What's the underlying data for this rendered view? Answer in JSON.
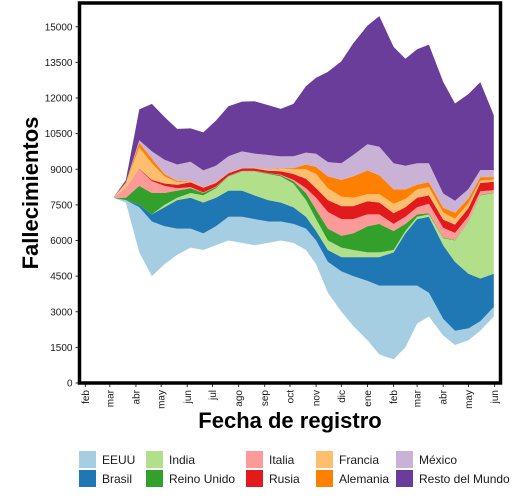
{
  "chart_data": {
    "type": "area",
    "subtype": "stacked-streamgraph",
    "title": "",
    "xlabel": "Fecha de registro",
    "ylabel": "Fallecimientos",
    "ylim": [
      0,
      16000
    ],
    "yticks": [
      0,
      1500,
      3000,
      4500,
      6000,
      7500,
      9000,
      10500,
      12000,
      13500,
      15000
    ],
    "xlim": [
      "2020-01-25",
      "2021-06-08"
    ],
    "xticks": [
      {
        "date": "2020-02-01",
        "label": "feb"
      },
      {
        "date": "2020-03-01",
        "label": "mar"
      },
      {
        "date": "2020-04-01",
        "label": "abr"
      },
      {
        "date": "2020-05-01",
        "label": "may"
      },
      {
        "date": "2020-06-01",
        "label": "jun"
      },
      {
        "date": "2020-07-01",
        "label": "jul"
      },
      {
        "date": "2020-08-01",
        "label": "ago"
      },
      {
        "date": "2020-09-01",
        "label": "sep"
      },
      {
        "date": "2020-10-01",
        "label": "oct"
      },
      {
        "date": "2020-11-01",
        "label": "nov"
      },
      {
        "date": "2020-12-01",
        "label": "dic"
      },
      {
        "date": "2021-01-01",
        "label": "ene"
      },
      {
        "date": "2021-02-01",
        "label": "feb"
      },
      {
        "date": "2021-03-01",
        "label": "mar"
      },
      {
        "date": "2021-04-01",
        "label": "abr"
      },
      {
        "date": "2021-05-01",
        "label": "may"
      },
      {
        "date": "2021-06-01",
        "label": "jun"
      }
    ],
    "grid": false,
    "legend_position": "bottom",
    "x": [
      "2020-03-05",
      "2020-03-20",
      "2020-04-05",
      "2020-04-20",
      "2020-05-05",
      "2020-05-20",
      "2020-06-05",
      "2020-06-20",
      "2020-07-05",
      "2020-07-20",
      "2020-08-05",
      "2020-08-20",
      "2020-09-05",
      "2020-09-20",
      "2020-10-05",
      "2020-10-20",
      "2020-11-01",
      "2020-11-15",
      "2020-12-01",
      "2020-12-15",
      "2021-01-01",
      "2021-01-15",
      "2021-02-01",
      "2021-02-15",
      "2021-03-01",
      "2021-03-15",
      "2021-04-01",
      "2021-04-15",
      "2021-05-01",
      "2021-05-15",
      "2021-05-31"
    ],
    "baseline": [
      7800,
      7600,
      5500,
      4500,
      5000,
      5400,
      5700,
      5600,
      5800,
      6000,
      5900,
      5800,
      5900,
      6000,
      5900,
      5600,
      5000,
      3800,
      3000,
      2400,
      1800,
      1200,
      1000,
      1500,
      2500,
      2800,
      2000,
      1600,
      1800,
      2200,
      2800
    ],
    "series": [
      {
        "name": "EEUU",
        "color": "#a6cee3",
        "values": [
          0,
          100,
          1900,
          2300,
          1600,
          1100,
          800,
          700,
          800,
          1000,
          1100,
          1100,
          900,
          800,
          800,
          900,
          1000,
          1300,
          1700,
          2100,
          2500,
          2900,
          3100,
          2600,
          1600,
          1000,
          700,
          600,
          500,
          400,
          400
        ]
      },
      {
        "name": "Brasil",
        "color": "#1f78b4",
        "values": [
          0,
          0,
          100,
          300,
          800,
          1200,
          1300,
          1300,
          1200,
          1100,
          1100,
          1000,
          900,
          800,
          700,
          500,
          400,
          500,
          600,
          800,
          1000,
          1200,
          1400,
          2200,
          2800,
          3200,
          3100,
          2900,
          2300,
          1800,
          1400
        ]
      },
      {
        "name": "India",
        "color": "#b2df8a",
        "values": [
          0,
          0,
          0,
          0,
          100,
          100,
          200,
          300,
          400,
          600,
          800,
          1000,
          1100,
          1100,
          1000,
          700,
          500,
          400,
          400,
          300,
          200,
          200,
          100,
          100,
          100,
          100,
          300,
          900,
          2200,
          3500,
          3400
        ]
      },
      {
        "name": "Reino Unido",
        "color": "#33a02c",
        "values": [
          0,
          100,
          800,
          900,
          500,
          300,
          200,
          100,
          50,
          20,
          20,
          20,
          30,
          50,
          100,
          300,
          400,
          500,
          500,
          700,
          1100,
          1200,
          800,
          300,
          100,
          50,
          30,
          20,
          20,
          20,
          20
        ]
      },
      {
        "name": "Italia",
        "color": "#fb9a99",
        "values": [
          0,
          400,
          700,
          500,
          300,
          100,
          50,
          20,
          20,
          10,
          10,
          10,
          10,
          20,
          50,
          200,
          500,
          700,
          700,
          600,
          500,
          400,
          300,
          300,
          300,
          400,
          400,
          300,
          200,
          150,
          100
        ]
      },
      {
        "name": "Rusia",
        "color": "#e31a1c",
        "values": [
          0,
          0,
          20,
          50,
          100,
          150,
          200,
          200,
          150,
          100,
          100,
          100,
          100,
          150,
          250,
          400,
          400,
          500,
          550,
          550,
          550,
          500,
          450,
          400,
          400,
          350,
          350,
          350,
          350,
          350,
          350
        ]
      },
      {
        "name": "Francia",
        "color": "#fdbf6f",
        "values": [
          0,
          200,
          900,
          700,
          300,
          100,
          50,
          20,
          20,
          10,
          10,
          20,
          50,
          100,
          200,
          400,
          600,
          500,
          400,
          350,
          300,
          350,
          400,
          350,
          350,
          350,
          300,
          250,
          200,
          100,
          100
        ]
      },
      {
        "name": "Alemania",
        "color": "#ff7f00",
        "values": [
          0,
          20,
          200,
          200,
          100,
          50,
          20,
          10,
          10,
          10,
          10,
          10,
          10,
          20,
          50,
          200,
          300,
          500,
          700,
          900,
          1000,
          800,
          600,
          400,
          200,
          200,
          200,
          250,
          200,
          150,
          100
        ]
      },
      {
        "name": "México",
        "color": "#cab2d6",
        "values": [
          0,
          20,
          100,
          300,
          600,
          700,
          800,
          700,
          700,
          700,
          700,
          600,
          600,
          500,
          500,
          500,
          550,
          600,
          700,
          900,
          1100,
          1200,
          1100,
          1000,
          900,
          800,
          600,
          500,
          400,
          300,
          300
        ]
      },
      {
        "name": "Resto del Mundo",
        "color": "#6a3d9a",
        "values": [
          0,
          100,
          1300,
          2000,
          1800,
          1500,
          1400,
          1600,
          1900,
          2100,
          2100,
          2200,
          2100,
          2000,
          2200,
          2800,
          3200,
          3800,
          4300,
          4700,
          5000,
          5500,
          4900,
          4500,
          4800,
          5000,
          4700,
          4100,
          4000,
          3700,
          2300
        ]
      }
    ]
  }
}
